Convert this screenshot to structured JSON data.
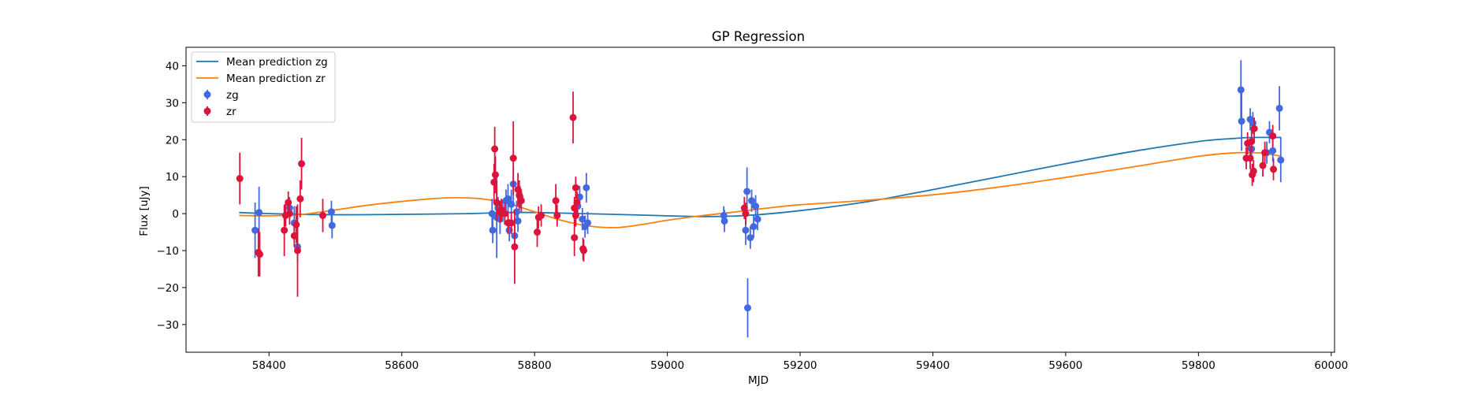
{
  "chart_data": {
    "type": "scatter",
    "title": "GP Regression",
    "xlabel": "MJD",
    "ylabel": "Flux [uJy]",
    "xlim": [
      58275,
      60005
    ],
    "ylim": [
      -37.5,
      45
    ],
    "xticks": [
      58400,
      58600,
      58800,
      59000,
      59200,
      59400,
      59600,
      59800,
      60000
    ],
    "yticks": [
      -30,
      -20,
      -10,
      0,
      10,
      20,
      30,
      40
    ],
    "legend_position": "upper-left",
    "grid": false,
    "lines": [
      {
        "name": "Mean prediction zg",
        "color": "#1f77b4",
        "x": [
          58355,
          58400,
          58500,
          58600,
          58700,
          58760,
          58800,
          58900,
          59000,
          59060,
          59120,
          59200,
          59300,
          59400,
          59500,
          59600,
          59700,
          59800,
          59850,
          59880,
          59925
        ],
        "y": [
          0.3,
          0,
          -0.3,
          -0.2,
          0,
          0.3,
          0.3,
          -0.1,
          -0.6,
          -0.8,
          -0.5,
          0.8,
          3.2,
          6.5,
          10,
          13.5,
          16.8,
          19.5,
          20.3,
          20.6,
          20.6
        ]
      },
      {
        "name": "Mean prediction zr",
        "color": "#ff7f0e",
        "x": [
          58355,
          58400,
          58450,
          58500,
          58550,
          58600,
          58650,
          58680,
          58720,
          58760,
          58800,
          58840,
          58880,
          58920,
          58960,
          59000,
          59050,
          59100,
          59150,
          59200,
          59300,
          59400,
          59500,
          59600,
          59700,
          59800,
          59850,
          59880,
          59900,
          59925
        ],
        "y": [
          -0.5,
          -0.6,
          -0.2,
          1,
          2.3,
          3.3,
          4.1,
          4.3,
          4,
          2.7,
          0.5,
          -1.8,
          -3.3,
          -3.8,
          -3,
          -1.8,
          -0.6,
          0.4,
          1.5,
          2.4,
          3.6,
          5.1,
          7.2,
          9.8,
          12.6,
          15.5,
          16.4,
          16.5,
          16.3,
          15.5
        ]
      }
    ],
    "series": [
      {
        "name": "zg",
        "color": "#4169e1",
        "points": [
          {
            "x": 58379,
            "y": -4.5,
            "err": 7.5
          },
          {
            "x": 58385,
            "y": 0.3,
            "err": 7
          },
          {
            "x": 58431,
            "y": 1.5,
            "err": 3
          },
          {
            "x": 58438,
            "y": -2.5,
            "err": 4.5
          },
          {
            "x": 58443,
            "y": -9,
            "err": 4
          },
          {
            "x": 58494,
            "y": 0.5,
            "err": 3
          },
          {
            "x": 58495,
            "y": -3.2,
            "err": 3.5
          },
          {
            "x": 58736,
            "y": 0,
            "err": 4
          },
          {
            "x": 58737,
            "y": -4.5,
            "err": 3.5
          },
          {
            "x": 58743,
            "y": -1,
            "err": 11
          },
          {
            "x": 58745,
            "y": 1.5,
            "err": 3
          },
          {
            "x": 58748,
            "y": -1.5,
            "err": 4
          },
          {
            "x": 58752,
            "y": 0.8,
            "err": 3
          },
          {
            "x": 58757,
            "y": 3.5,
            "err": 3
          },
          {
            "x": 58760,
            "y": 4,
            "err": 4
          },
          {
            "x": 58762,
            "y": -4.5,
            "err": 3
          },
          {
            "x": 58765,
            "y": 2.5,
            "err": 4
          },
          {
            "x": 58768,
            "y": 8,
            "err": 5
          },
          {
            "x": 58770,
            "y": -6,
            "err": 3
          },
          {
            "x": 58773,
            "y": 0.5,
            "err": 3
          },
          {
            "x": 58775,
            "y": -2,
            "err": 3
          },
          {
            "x": 58778,
            "y": 4.5,
            "err": 3
          },
          {
            "x": 58865,
            "y": 2,
            "err": 3
          },
          {
            "x": 58868,
            "y": 4.5,
            "err": 3
          },
          {
            "x": 58872,
            "y": -1.5,
            "err": 3
          },
          {
            "x": 58876,
            "y": -3.5,
            "err": 3
          },
          {
            "x": 58878,
            "y": 7,
            "err": 4
          },
          {
            "x": 58880,
            "y": -2.5,
            "err": 3
          },
          {
            "x": 59085,
            "y": -0.5,
            "err": 2.5
          },
          {
            "x": 59086,
            "y": -2,
            "err": 3
          },
          {
            "x": 59118,
            "y": -4.5,
            "err": 4
          },
          {
            "x": 59120,
            "y": 6,
            "err": 6.5
          },
          {
            "x": 59121,
            "y": -25.5,
            "err": 8
          },
          {
            "x": 59125,
            "y": -6.5,
            "err": 3
          },
          {
            "x": 59127,
            "y": 3.5,
            "err": 3
          },
          {
            "x": 59130,
            "y": -3.5,
            "err": 3
          },
          {
            "x": 59133,
            "y": 2,
            "err": 3
          },
          {
            "x": 59136,
            "y": -1.5,
            "err": 3
          },
          {
            "x": 59864,
            "y": 33.5,
            "err": 8
          },
          {
            "x": 59865,
            "y": 25,
            "err": 8
          },
          {
            "x": 59878,
            "y": 25.5,
            "err": 3
          },
          {
            "x": 59880,
            "y": 17.5,
            "err": 3
          },
          {
            "x": 59882,
            "y": 24.5,
            "err": 3
          },
          {
            "x": 59903,
            "y": 16.5,
            "err": 3
          },
          {
            "x": 59907,
            "y": 22,
            "err": 3
          },
          {
            "x": 59912,
            "y": 17,
            "err": 3
          },
          {
            "x": 59922,
            "y": 28.5,
            "err": 6
          },
          {
            "x": 59924,
            "y": 14.5,
            "err": 6
          }
        ]
      },
      {
        "name": "zr",
        "color": "#dc143c",
        "points": [
          {
            "x": 58356,
            "y": 9.5,
            "err": 7
          },
          {
            "x": 58384,
            "y": -10.5,
            "err": 6.5
          },
          {
            "x": 58386,
            "y": -11,
            "err": 6
          },
          {
            "x": 58423,
            "y": -4.5,
            "err": 7
          },
          {
            "x": 58425,
            "y": -0.5,
            "err": 3
          },
          {
            "x": 58429,
            "y": 3,
            "err": 3
          },
          {
            "x": 58431,
            "y": 0,
            "err": 3
          },
          {
            "x": 58438,
            "y": -6,
            "err": 3
          },
          {
            "x": 58441,
            "y": -3,
            "err": 5
          },
          {
            "x": 58443,
            "y": -10,
            "err": 12.5
          },
          {
            "x": 58447,
            "y": 4,
            "err": 5
          },
          {
            "x": 58449,
            "y": 13.5,
            "err": 7
          },
          {
            "x": 58481,
            "y": -0.5,
            "err": 4.5
          },
          {
            "x": 58739,
            "y": 8.5,
            "err": 5
          },
          {
            "x": 58740,
            "y": 17.5,
            "err": 6
          },
          {
            "x": 58741,
            "y": 10.5,
            "err": 5
          },
          {
            "x": 58743,
            "y": 3,
            "err": 5
          },
          {
            "x": 58748,
            "y": 0.5,
            "err": 3
          },
          {
            "x": 58750,
            "y": 1,
            "err": 3
          },
          {
            "x": 58755,
            "y": 0,
            "err": 3
          },
          {
            "x": 58760,
            "y": -2.5,
            "err": 3
          },
          {
            "x": 58765,
            "y": -2.5,
            "err": 3
          },
          {
            "x": 58768,
            "y": 15,
            "err": 10
          },
          {
            "x": 58770,
            "y": -9,
            "err": 10
          },
          {
            "x": 58775,
            "y": 6.5,
            "err": 4.5
          },
          {
            "x": 58777,
            "y": 5,
            "err": 4
          },
          {
            "x": 58780,
            "y": 3.5,
            "err": 3
          },
          {
            "x": 58804,
            "y": -5,
            "err": 4
          },
          {
            "x": 58806,
            "y": -1,
            "err": 3
          },
          {
            "x": 58810,
            "y": -0.5,
            "err": 3
          },
          {
            "x": 58832,
            "y": 3.5,
            "err": 4.5
          },
          {
            "x": 58834,
            "y": -0.5,
            "err": 3
          },
          {
            "x": 58858,
            "y": 26,
            "err": 7
          },
          {
            "x": 58860,
            "y": 1.5,
            "err": 3
          },
          {
            "x": 58862,
            "y": -0.5,
            "err": 3
          },
          {
            "x": 58862,
            "y": 7,
            "err": 3
          },
          {
            "x": 58864,
            "y": 3,
            "err": 3
          },
          {
            "x": 58860,
            "y": -6.5,
            "err": 5
          },
          {
            "x": 58873,
            "y": -9.5,
            "err": 3
          },
          {
            "x": 58874,
            "y": -10,
            "err": 3
          },
          {
            "x": 59116,
            "y": 1.5,
            "err": 3
          },
          {
            "x": 59118,
            "y": 0,
            "err": 3
          },
          {
            "x": 59872,
            "y": 15,
            "err": 3
          },
          {
            "x": 59874,
            "y": 19,
            "err": 3
          },
          {
            "x": 59878,
            "y": 15,
            "err": 3
          },
          {
            "x": 59880,
            "y": 19.5,
            "err": 3
          },
          {
            "x": 59881,
            "y": 10.5,
            "err": 3
          },
          {
            "x": 59883,
            "y": 11.5,
            "err": 3
          },
          {
            "x": 59884,
            "y": 23,
            "err": 3
          },
          {
            "x": 59897,
            "y": 13,
            "err": 3
          },
          {
            "x": 59900,
            "y": 16.5,
            "err": 3
          },
          {
            "x": 59912,
            "y": 21,
            "err": 3
          },
          {
            "x": 59913,
            "y": 12,
            "err": 3
          }
        ]
      }
    ]
  }
}
